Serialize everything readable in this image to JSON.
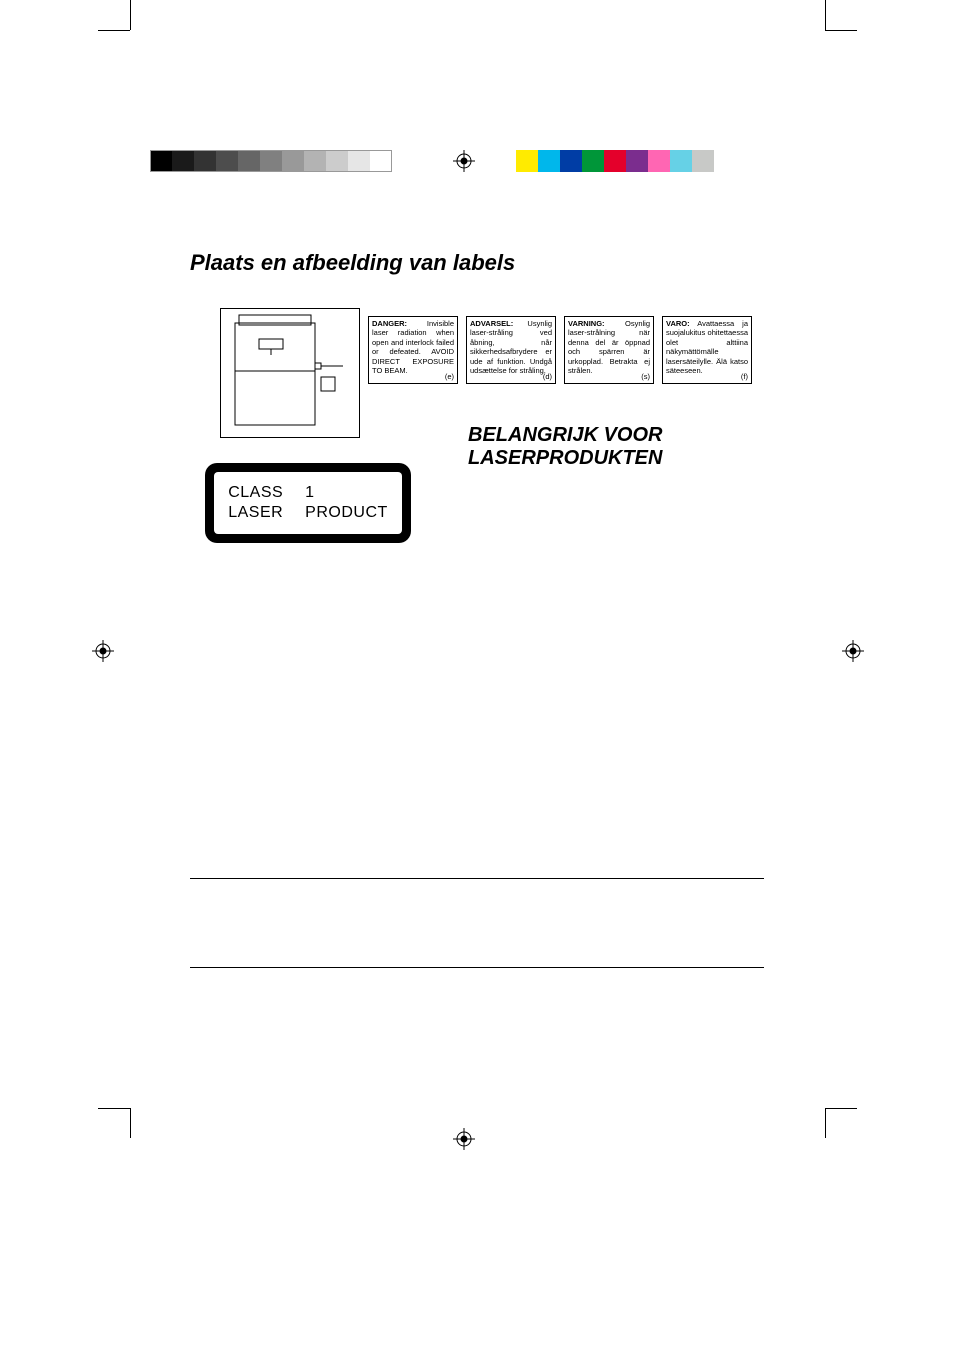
{
  "title": "Plaats en afbeelding van labels",
  "subheading_line1": "BELANGRIJK VOOR",
  "subheading_line2": "LASERPRODUKTEN",
  "gray_swatches": [
    "#000000",
    "#1a1a1a",
    "#333333",
    "#4d4d4d",
    "#666666",
    "#808080",
    "#999999",
    "#b3b3b3",
    "#cccccc",
    "#e6e6e6",
    "#ffffff"
  ],
  "color_swatches": [
    "#ffeb00",
    "#00b7eb",
    "#003da5",
    "#009639",
    "#e4002b",
    "#7b2d8e",
    "#ff66b3",
    "#66d1e6",
    "#c8c9c7"
  ],
  "warnings": [
    {
      "lead": "DANGER:",
      "body": " Invisible laser radiation when open and interlock failed or defeated. AVOID DIRECT EXPOSURE TO BEAM.",
      "note": "(e)"
    },
    {
      "lead": "ADVARSEL:",
      "body": " Usynlig laser-stråling ved åbning, når sikkerhedsafbrydere er ude af funktion. Undgå udsættelse for stråling.",
      "note": "(d)"
    },
    {
      "lead": "VARNING:",
      "body": " Osynlig laser-strålning när denna del är öppnad och spärren är urkopplad. Betrakta ej strålen.",
      "note": "(s)"
    },
    {
      "lead": "VARO:",
      "body": " Avattaessa ja suojalukitus ohitettaessa olet alttiina näkymättömälle lasersäteilylle. Älä katso säteeseen.",
      "note": "(f)"
    }
  ],
  "class1": {
    "r1c1": "CLASS",
    "r1c2": "1",
    "r2c1": "LASER",
    "r2c2": "PRODUCT"
  },
  "colors": {
    "background": "#ffffff",
    "text": "#000000",
    "border": "#000000"
  }
}
